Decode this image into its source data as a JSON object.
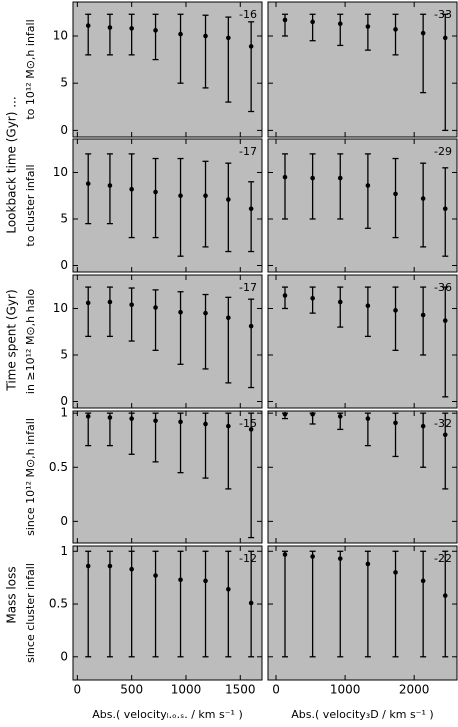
{
  "row_titles": [
    "Lookback time (Gyr) ...",
    "Time spent (Gyr)",
    "Mass loss"
  ],
  "chart_data": [
    {
      "type": "errorbar",
      "label": "-16",
      "ylabel": "to 10¹² M⊙,h infall",
      "x": [
        100,
        300,
        500,
        720,
        950,
        1180,
        1390,
        1600
      ],
      "values": [
        11.1,
        10.9,
        10.8,
        10.6,
        10.2,
        10.0,
        9.8,
        8.9
      ],
      "lows": [
        8,
        8,
        8,
        7.5,
        5,
        4.5,
        3,
        2
      ],
      "highs": [
        12.3,
        12.3,
        12.3,
        12.3,
        12.3,
        12.2,
        12.0,
        11.5
      ],
      "xlim": [
        -40,
        1700
      ],
      "xticks": [
        0,
        500,
        1000,
        1500
      ],
      "ylim": [
        -0.7,
        13.6
      ],
      "yticks": [
        0,
        5,
        10
      ]
    },
    {
      "type": "errorbar",
      "label": "-33",
      "x": [
        130,
        530,
        930,
        1330,
        1730,
        2130,
        2450
      ],
      "values": [
        11.7,
        11.5,
        11.3,
        11.0,
        10.7,
        10.3,
        9.8
      ],
      "lows": [
        10,
        9.5,
        9,
        8.5,
        8,
        4,
        0
      ],
      "highs": [
        12.3,
        12.3,
        12.3,
        12.3,
        12.3,
        12.3,
        12.3
      ],
      "xlim": [
        -116,
        2620
      ],
      "xticks": [
        0,
        1000,
        2000
      ],
      "ylim": [
        -0.7,
        13.6
      ],
      "yticks": [
        0,
        5,
        10
      ]
    },
    {
      "type": "errorbar",
      "label": "-17",
      "ylabel": "to cluster infall",
      "x": [
        100,
        300,
        500,
        720,
        950,
        1180,
        1390,
        1600
      ],
      "values": [
        8.8,
        8.6,
        8.2,
        7.9,
        7.5,
        7.5,
        7.1,
        6.1
      ],
      "lows": [
        4.5,
        4.5,
        3,
        3,
        1,
        2,
        1.5,
        1.5
      ],
      "highs": [
        12,
        12,
        12,
        11.5,
        11.5,
        11.2,
        11,
        9
      ],
      "xlim": [
        -40,
        1700
      ],
      "xticks": [
        0,
        500,
        1000,
        1500
      ],
      "ylim": [
        -0.7,
        13.6
      ],
      "yticks": [
        0,
        5,
        10
      ]
    },
    {
      "type": "errorbar",
      "label": "-29",
      "x": [
        130,
        530,
        930,
        1330,
        1730,
        2130,
        2450
      ],
      "values": [
        9.5,
        9.4,
        9.4,
        8.6,
        7.7,
        7.2,
        6.1
      ],
      "lows": [
        5,
        5,
        5,
        4,
        3,
        2,
        1
      ],
      "highs": [
        12,
        12,
        12,
        12,
        11.5,
        11,
        10.5
      ],
      "xlim": [
        -116,
        2620
      ],
      "xticks": [
        0,
        1000,
        2000
      ],
      "ylim": [
        -0.7,
        13.6
      ],
      "yticks": [
        0,
        5,
        10
      ]
    },
    {
      "type": "errorbar",
      "label": "-17",
      "ylabel": "in ≥10¹² M⊙,h halo",
      "x": [
        100,
        300,
        500,
        720,
        950,
        1180,
        1390,
        1600
      ],
      "values": [
        10.6,
        10.7,
        10.4,
        10.1,
        9.6,
        9.5,
        9.0,
        8.1
      ],
      "lows": [
        7,
        7,
        6.5,
        5.5,
        4,
        3.5,
        2,
        1.5
      ],
      "highs": [
        12.3,
        12.3,
        12.2,
        12,
        11.8,
        11.5,
        11.2,
        11
      ],
      "xlim": [
        -40,
        1700
      ],
      "xticks": [
        0,
        500,
        1000,
        1500
      ],
      "ylim": [
        -0.7,
        13.6
      ],
      "yticks": [
        0,
        5,
        10
      ]
    },
    {
      "type": "errorbar",
      "label": "-36",
      "x": [
        130,
        530,
        930,
        1330,
        1730,
        2130,
        2450
      ],
      "values": [
        11.4,
        11.1,
        10.7,
        10.3,
        9.8,
        9.3,
        8.7
      ],
      "lows": [
        10,
        9.5,
        8,
        7,
        5.5,
        5,
        0.5
      ],
      "highs": [
        12.3,
        12.3,
        12.3,
        12.3,
        12.3,
        12.3,
        12.3
      ],
      "xlim": [
        -116,
        2620
      ],
      "xticks": [
        0,
        1000,
        2000
      ],
      "ylim": [
        -0.7,
        13.6
      ],
      "yticks": [
        0,
        5,
        10
      ]
    },
    {
      "type": "errorbar",
      "label": "-15",
      "ylabel": "since 10¹² M⊙,h infall",
      "x": [
        100,
        300,
        500,
        720,
        950,
        1180,
        1390,
        1600
      ],
      "values": [
        0.97,
        0.96,
        0.95,
        0.93,
        0.92,
        0.9,
        0.88,
        0.85
      ],
      "lows": [
        0.7,
        0.7,
        0.62,
        0.55,
        0.45,
        0.4,
        0.3,
        -0.15
      ],
      "highs": [
        1,
        1,
        1,
        1,
        1,
        1,
        1,
        1
      ],
      "xlim": [
        -40,
        1700
      ],
      "xticks": [
        0,
        500,
        1000,
        1500
      ],
      "ylim": [
        -0.2,
        1.02
      ],
      "yticks": [
        0,
        0.5,
        1
      ]
    },
    {
      "type": "errorbar",
      "label": "-32",
      "x": [
        130,
        530,
        930,
        1330,
        1730,
        2130,
        2450
      ],
      "values": [
        0.99,
        0.99,
        0.97,
        0.95,
        0.91,
        0.88,
        0.8
      ],
      "lows": [
        0.95,
        0.9,
        0.85,
        0.7,
        0.6,
        0.5,
        0.3
      ],
      "highs": [
        1,
        1,
        1,
        1,
        1,
        1,
        1
      ],
      "xlim": [
        -116,
        2620
      ],
      "xticks": [
        0,
        1000,
        2000
      ],
      "ylim": [
        -0.2,
        1.02
      ],
      "yticks": [
        0,
        0.5,
        1
      ]
    },
    {
      "type": "errorbar",
      "label": "-12",
      "ylabel": "since cluster infall",
      "xlabel": "Abs.( velocityₗ.ₒ.ₛ. / km s⁻¹ )",
      "x": [
        100,
        300,
        500,
        720,
        950,
        1180,
        1390,
        1600
      ],
      "values": [
        0.86,
        0.86,
        0.83,
        0.77,
        0.73,
        0.72,
        0.64,
        0.51
      ],
      "lows": [
        0,
        0,
        0,
        0,
        0,
        0,
        0,
        0
      ],
      "highs": [
        1,
        1,
        1,
        1,
        1,
        1,
        1,
        1
      ],
      "xlim": [
        -40,
        1700
      ],
      "xticks": [
        0,
        500,
        1000,
        1500
      ],
      "ylim": [
        -0.22,
        1.05
      ],
      "yticks": [
        0,
        0.5,
        1
      ]
    },
    {
      "type": "errorbar",
      "label": "-22",
      "xlabel": "Abs.( velocity₃D / km s⁻¹ )",
      "x": [
        130,
        530,
        930,
        1330,
        1730,
        2130,
        2450
      ],
      "values": [
        0.97,
        0.95,
        0.93,
        0.88,
        0.8,
        0.72,
        0.58
      ],
      "lows": [
        0,
        0,
        0,
        0,
        0,
        0,
        0
      ],
      "highs": [
        1,
        1,
        1,
        1,
        1,
        1,
        1
      ],
      "xlim": [
        -116,
        2620
      ],
      "xticks": [
        0,
        1000,
        2000
      ],
      "ylim": [
        -0.22,
        1.05
      ],
      "yticks": [
        0,
        0.5,
        1
      ]
    }
  ]
}
